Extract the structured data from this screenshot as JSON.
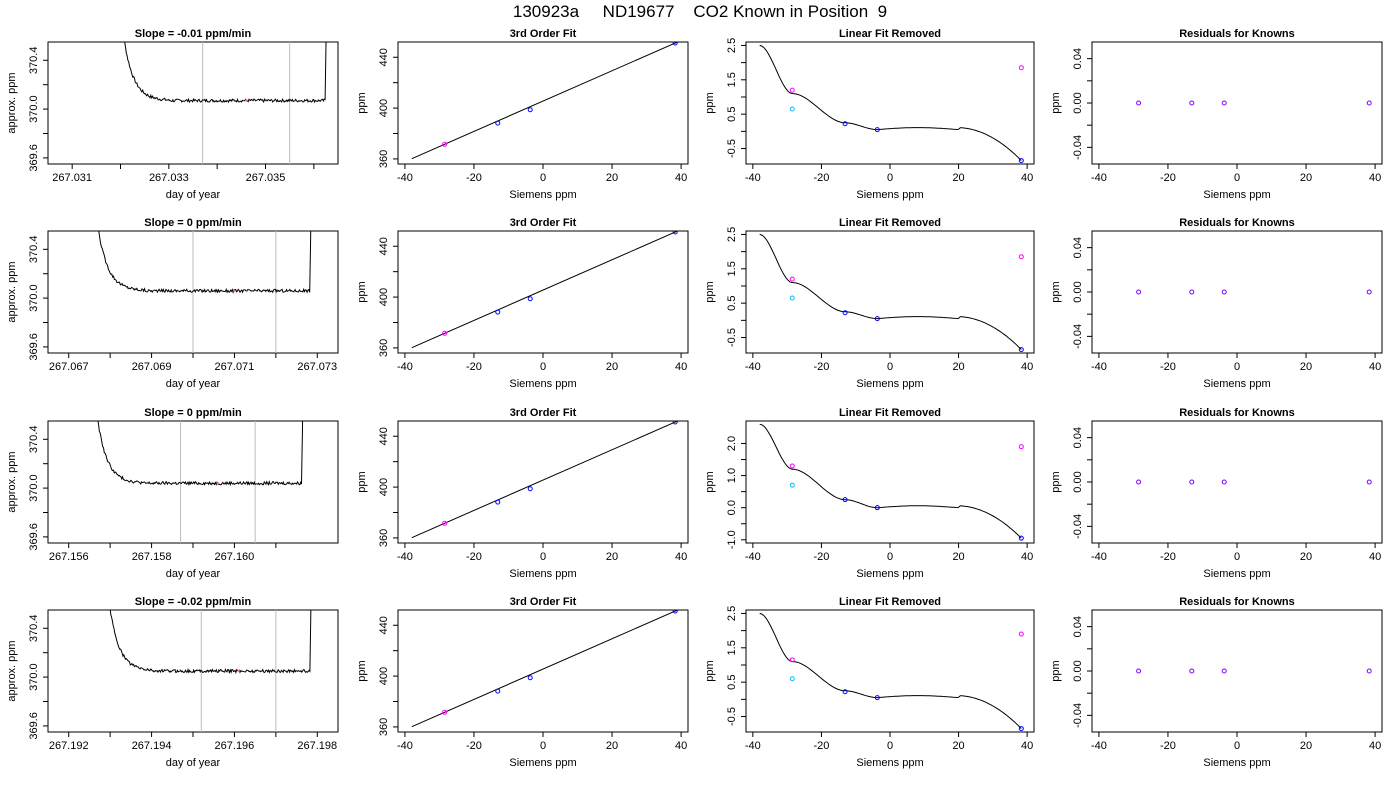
{
  "page_title": "130923a     ND19677    CO2 Known in Position  9",
  "colors": {
    "trace": "#000000",
    "window_line": "#bdbdbd",
    "point_blue": "#0000ff",
    "point_magenta": "#ff00ff",
    "point_cyan": "#00c0ff",
    "point_purple": "#8000ff",
    "marker_pink": "#ff6699"
  },
  "chart_data": [
    {
      "type": "line",
      "panel": "trace",
      "title": "Slope =  -0.01  ppm/min",
      "xlabel": "day of year",
      "ylabel": "approx. ppm",
      "xlim": [
        267.0305,
        267.0365
      ],
      "ylim": [
        369.55,
        370.55
      ],
      "x_ticks": [
        267.031,
        267.032,
        267.033,
        267.034,
        267.035,
        267.036
      ],
      "x_tick_labels": [
        "267.031",
        "",
        "267.033",
        "",
        "267.035",
        ""
      ],
      "y_ticks": [
        369.6,
        369.8,
        370.0,
        370.2,
        370.4
      ],
      "y_tick_labels": [
        "369.6",
        "",
        "370.0",
        "",
        "370.4"
      ],
      "trace_start": 267.0319,
      "trace_end": 267.0363,
      "plateau": 370.07,
      "window": [
        267.0337,
        267.0355
      ],
      "marker_x": 267.0346
    },
    {
      "type": "line",
      "panel": "fit",
      "title": "3rd Order Fit",
      "xlabel": "Siemens ppm",
      "ylabel": "ppm",
      "xlim": [
        -42,
        42
      ],
      "ylim": [
        356,
        452
      ],
      "x_ticks": [
        -40,
        -20,
        0,
        20,
        40
      ],
      "x_tick_labels": [
        "-40",
        "-20",
        "0",
        "20",
        "40"
      ],
      "y_ticks": [
        360,
        380,
        400,
        420,
        440
      ],
      "y_tick_labels": [
        "360",
        "",
        "400",
        "",
        "440"
      ],
      "points": [
        [
          -28.5,
          371.5
        ],
        [
          -13.1,
          388.2
        ],
        [
          -3.7,
          398.7
        ],
        [
          38.3,
          451.2
        ]
      ]
    },
    {
      "type": "scatter",
      "panel": "linres",
      "title": "Linear Fit Removed",
      "xlabel": "Siemens ppm",
      "ylabel": "ppm",
      "xlim": [
        -42,
        42
      ],
      "ylim": [
        -0.95,
        2.6
      ],
      "x_ticks": [
        -40,
        -20,
        0,
        20,
        40
      ],
      "x_tick_labels": [
        "-40",
        "-20",
        "0",
        "20",
        "40"
      ],
      "y_ticks": [
        -0.5,
        0,
        0.5,
        1,
        1.5,
        2,
        2.5
      ],
      "y_tick_labels": [
        "-0.5",
        "",
        "0.5",
        "",
        "1.5",
        "",
        "2.5"
      ],
      "curve_pts": [
        [
          -38,
          2.5
        ],
        [
          -28.5,
          1.1
        ],
        [
          -13.1,
          0.25
        ],
        [
          -3.7,
          0.05
        ],
        [
          38.3,
          -0.85
        ]
      ],
      "points_blue": [
        [
          -13.1,
          0.22
        ],
        [
          -3.7,
          0.05
        ],
        [
          38.3,
          -0.85
        ]
      ],
      "point_magenta": [
        [
          -28.5,
          1.2
        ],
        [
          38.3,
          1.85
        ]
      ],
      "point_cyan": [
        [
          -28.5,
          0.65
        ]
      ]
    },
    {
      "type": "scatter",
      "panel": "resid",
      "title": "Residuals for Knowns",
      "xlabel": "Siemens ppm",
      "ylabel": "ppm",
      "xlim": [
        -42,
        42
      ],
      "ylim": [
        -0.055,
        0.055
      ],
      "x_ticks": [
        -40,
        -20,
        0,
        20,
        40
      ],
      "x_tick_labels": [
        "-40",
        "-20",
        "0",
        "20",
        "40"
      ],
      "y_ticks": [
        -0.04,
        -0.02,
        0,
        0.02,
        0.04
      ],
      "y_tick_labels": [
        "-0.04",
        "",
        "0.00",
        "",
        "0.04"
      ],
      "points": [
        [
          -28.5,
          0
        ],
        [
          -13.1,
          0
        ],
        [
          -3.7,
          0
        ],
        [
          38.3,
          0
        ]
      ]
    },
    {
      "type": "line",
      "panel": "trace",
      "title": "Slope =  0  ppm/min",
      "xlabel": "day of year",
      "ylabel": "approx. ppm",
      "xlim": [
        267.0665,
        267.0735
      ],
      "ylim": [
        369.55,
        370.55
      ],
      "x_ticks": [
        267.067,
        267.068,
        267.069,
        267.07,
        267.071,
        267.072,
        267.073
      ],
      "x_tick_labels": [
        "267.067",
        "",
        "267.069",
        "",
        "267.071",
        "",
        "267.073"
      ],
      "y_ticks": [
        369.6,
        369.8,
        370.0,
        370.2,
        370.4
      ],
      "y_tick_labels": [
        "369.6",
        "",
        "370.0",
        "",
        "370.4"
      ],
      "trace_start": 267.0675,
      "trace_end": 267.0729,
      "plateau": 370.06,
      "window": [
        267.07,
        267.072
      ],
      "marker_x": 267.071
    },
    {
      "type": "line",
      "panel": "fit",
      "title": "3rd Order Fit",
      "xlabel": "Siemens ppm",
      "ylabel": "ppm",
      "xlim": [
        -42,
        42
      ],
      "ylim": [
        356,
        452
      ],
      "x_ticks": [
        -40,
        -20,
        0,
        20,
        40
      ],
      "x_tick_labels": [
        "-40",
        "-20",
        "0",
        "20",
        "40"
      ],
      "y_ticks": [
        360,
        380,
        400,
        420,
        440
      ],
      "y_tick_labels": [
        "360",
        "",
        "400",
        "",
        "440"
      ],
      "points": [
        [
          -28.5,
          371.5
        ],
        [
          -13.1,
          388.2
        ],
        [
          -3.7,
          398.7
        ],
        [
          38.3,
          451.2
        ]
      ]
    },
    {
      "type": "scatter",
      "panel": "linres",
      "title": "Linear Fit Removed",
      "xlabel": "Siemens ppm",
      "ylabel": "ppm",
      "xlim": [
        -42,
        42
      ],
      "ylim": [
        -0.95,
        2.6
      ],
      "x_ticks": [
        -40,
        -20,
        0,
        20,
        40
      ],
      "x_tick_labels": [
        "-40",
        "-20",
        "0",
        "20",
        "40"
      ],
      "y_ticks": [
        -0.5,
        0,
        0.5,
        1,
        1.5,
        2,
        2.5
      ],
      "y_tick_labels": [
        "-0.5",
        "",
        "0.5",
        "",
        "1.5",
        "",
        "2.5"
      ],
      "curve_pts": [
        [
          -38,
          2.5
        ],
        [
          -28.5,
          1.1
        ],
        [
          -13.1,
          0.25
        ],
        [
          -3.7,
          0.05
        ],
        [
          38.3,
          -0.85
        ]
      ],
      "points_blue": [
        [
          -13.1,
          0.22
        ],
        [
          -3.7,
          0.05
        ],
        [
          38.3,
          -0.85
        ]
      ],
      "point_magenta": [
        [
          -28.5,
          1.2
        ],
        [
          38.3,
          1.85
        ]
      ],
      "point_cyan": [
        [
          -28.5,
          0.65
        ]
      ]
    },
    {
      "type": "scatter",
      "panel": "resid",
      "title": "Residuals for Knowns",
      "xlabel": "Siemens ppm",
      "ylabel": "ppm",
      "xlim": [
        -42,
        42
      ],
      "ylim": [
        -0.055,
        0.055
      ],
      "x_ticks": [
        -40,
        -20,
        0,
        20,
        40
      ],
      "x_tick_labels": [
        "-40",
        "-20",
        "0",
        "20",
        "40"
      ],
      "y_ticks": [
        -0.04,
        -0.02,
        0,
        0.02,
        0.04
      ],
      "y_tick_labels": [
        "-0.04",
        "",
        "0.00",
        "",
        "0.04"
      ],
      "points": [
        [
          -28.5,
          0
        ],
        [
          -13.1,
          0
        ],
        [
          -3.7,
          0
        ],
        [
          38.3,
          0
        ]
      ]
    },
    {
      "type": "line",
      "panel": "trace",
      "title": "Slope =  0  ppm/min",
      "xlabel": "day of year",
      "ylabel": "approx. ppm",
      "xlim": [
        267.1555,
        267.1625
      ],
      "ylim": [
        369.55,
        370.55
      ],
      "x_ticks": [
        267.156,
        267.157,
        267.158,
        267.159,
        267.16,
        267.161
      ],
      "x_tick_labels": [
        "267.156",
        "",
        "267.158",
        "",
        "267.160",
        ""
      ],
      "y_ticks": [
        369.6,
        369.8,
        370.0,
        370.2,
        370.4
      ],
      "y_tick_labels": [
        "369.6",
        "",
        "370.0",
        "",
        "370.4"
      ],
      "trace_start": 267.1565,
      "trace_end": 267.1617,
      "plateau": 370.04,
      "window": [
        267.1587,
        267.1605
      ],
      "marker_x": 267.1596
    },
    {
      "type": "line",
      "panel": "fit",
      "title": "3rd Order Fit",
      "xlabel": "Siemens ppm",
      "ylabel": "ppm",
      "xlim": [
        -42,
        42
      ],
      "ylim": [
        356,
        452
      ],
      "x_ticks": [
        -40,
        -20,
        0,
        20,
        40
      ],
      "x_tick_labels": [
        "-40",
        "-20",
        "0",
        "20",
        "40"
      ],
      "y_ticks": [
        360,
        380,
        400,
        420,
        440
      ],
      "y_tick_labels": [
        "360",
        "",
        "400",
        "",
        "440"
      ],
      "points": [
        [
          -28.5,
          371.5
        ],
        [
          -13.1,
          388.2
        ],
        [
          -3.7,
          398.7
        ],
        [
          38.3,
          451.2
        ]
      ]
    },
    {
      "type": "scatter",
      "panel": "linres",
      "title": "Linear Fit Removed",
      "xlabel": "Siemens ppm",
      "ylabel": "ppm",
      "xlim": [
        -42,
        42
      ],
      "ylim": [
        -1.1,
        2.7
      ],
      "x_ticks": [
        -40,
        -20,
        0,
        20,
        40
      ],
      "x_tick_labels": [
        "-40",
        "-20",
        "0",
        "20",
        "40"
      ],
      "y_ticks": [
        -1,
        -0.5,
        0,
        0.5,
        1,
        1.5,
        2
      ],
      "y_tick_labels": [
        "-1.0",
        "",
        "0.0",
        "",
        "1.0",
        "",
        "2.0"
      ],
      "curve_pts": [
        [
          -38,
          2.6
        ],
        [
          -28.5,
          1.2
        ],
        [
          -13.1,
          0.25
        ],
        [
          -3.7,
          0.0
        ],
        [
          38.3,
          -0.95
        ]
      ],
      "points_blue": [
        [
          -13.1,
          0.25
        ],
        [
          -3.7,
          0.0
        ],
        [
          38.3,
          -0.95
        ]
      ],
      "point_magenta": [
        [
          -28.5,
          1.3
        ],
        [
          38.3,
          1.9
        ]
      ],
      "point_cyan": [
        [
          -28.5,
          0.7
        ]
      ]
    },
    {
      "type": "scatter",
      "panel": "resid",
      "title": "Residuals for Knowns",
      "xlabel": "Siemens ppm",
      "ylabel": "ppm",
      "xlim": [
        -42,
        42
      ],
      "ylim": [
        -0.055,
        0.055
      ],
      "x_ticks": [
        -40,
        -20,
        0,
        20,
        40
      ],
      "x_tick_labels": [
        "-40",
        "-20",
        "0",
        "20",
        "40"
      ],
      "y_ticks": [
        -0.04,
        -0.02,
        0,
        0.02,
        0.04
      ],
      "y_tick_labels": [
        "-0.04",
        "",
        "0.00",
        "",
        "0.04"
      ],
      "points": [
        [
          -28.5,
          0
        ],
        [
          -13.1,
          0
        ],
        [
          -3.7,
          0
        ],
        [
          38.3,
          0
        ]
      ]
    },
    {
      "type": "line",
      "panel": "trace",
      "title": "Slope =  -0.02  ppm/min",
      "xlabel": "day of year",
      "ylabel": "approx. ppm",
      "xlim": [
        267.1915,
        267.1985
      ],
      "ylim": [
        369.55,
        370.55
      ],
      "x_ticks": [
        267.192,
        267.193,
        267.194,
        267.195,
        267.196,
        267.197,
        267.198
      ],
      "x_tick_labels": [
        "267.192",
        "",
        "267.194",
        "",
        "267.196",
        "",
        "267.198"
      ],
      "y_ticks": [
        369.6,
        369.8,
        370.0,
        370.2,
        370.4
      ],
      "y_tick_labels": [
        "369.6",
        "",
        "370.0",
        "",
        "370.4"
      ],
      "trace_start": 267.1928,
      "trace_end": 267.1979,
      "plateau": 370.05,
      "window": [
        267.1952,
        267.197
      ],
      "marker_x": 267.1961
    },
    {
      "type": "line",
      "panel": "fit",
      "title": "3rd Order Fit",
      "xlabel": "Siemens ppm",
      "ylabel": "ppm",
      "xlim": [
        -42,
        42
      ],
      "ylim": [
        356,
        452
      ],
      "x_ticks": [
        -40,
        -20,
        0,
        20,
        40
      ],
      "x_tick_labels": [
        "-40",
        "-20",
        "0",
        "20",
        "40"
      ],
      "y_ticks": [
        360,
        380,
        400,
        420,
        440
      ],
      "y_tick_labels": [
        "360",
        "",
        "400",
        "",
        "440"
      ],
      "points": [
        [
          -28.5,
          371.5
        ],
        [
          -13.1,
          388.2
        ],
        [
          -3.7,
          398.7
        ],
        [
          38.3,
          451.2
        ]
      ]
    },
    {
      "type": "scatter",
      "panel": "linres",
      "title": "Linear Fit Removed",
      "xlabel": "Siemens ppm",
      "ylabel": "ppm",
      "xlim": [
        -42,
        42
      ],
      "ylim": [
        -0.95,
        2.6
      ],
      "x_ticks": [
        -40,
        -20,
        0,
        20,
        40
      ],
      "x_tick_labels": [
        "-40",
        "-20",
        "0",
        "20",
        "40"
      ],
      "y_ticks": [
        -0.5,
        0,
        0.5,
        1,
        1.5,
        2,
        2.5
      ],
      "y_tick_labels": [
        "-0.5",
        "",
        "0.5",
        "",
        "1.5",
        "",
        "2.5"
      ],
      "curve_pts": [
        [
          -38,
          2.5
        ],
        [
          -28.5,
          1.1
        ],
        [
          -13.1,
          0.25
        ],
        [
          -3.7,
          0.05
        ],
        [
          38.3,
          -0.85
        ]
      ],
      "points_blue": [
        [
          -13.1,
          0.22
        ],
        [
          -3.7,
          0.05
        ],
        [
          38.3,
          -0.85
        ]
      ],
      "point_magenta": [
        [
          -28.5,
          1.15
        ],
        [
          38.3,
          1.9
        ]
      ],
      "point_cyan": [
        [
          -28.5,
          0.6
        ]
      ]
    },
    {
      "type": "scatter",
      "panel": "resid",
      "title": "Residuals for Knowns",
      "xlabel": "Siemens ppm",
      "ylabel": "ppm",
      "xlim": [
        -42,
        42
      ],
      "ylim": [
        -0.055,
        0.055
      ],
      "x_ticks": [
        -40,
        -20,
        0,
        20,
        40
      ],
      "x_tick_labels": [
        "-40",
        "-20",
        "0",
        "20",
        "40"
      ],
      "y_ticks": [
        -0.04,
        -0.02,
        0,
        0.02,
        0.04
      ],
      "y_tick_labels": [
        "-0.04",
        "",
        "0.00",
        "",
        "0.04"
      ],
      "points": [
        [
          -28.5,
          0
        ],
        [
          -13.1,
          0
        ],
        [
          -3.7,
          0
        ],
        [
          38.3,
          0
        ]
      ]
    }
  ]
}
